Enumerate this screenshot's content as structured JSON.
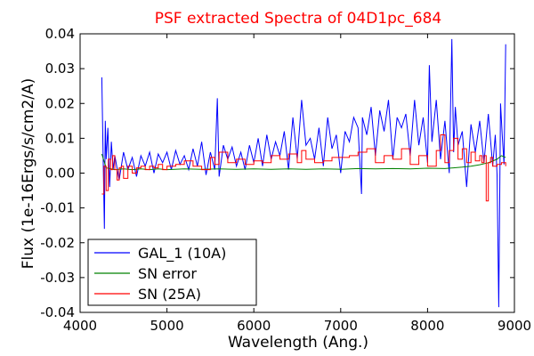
{
  "chart_data": {
    "type": "line",
    "title": "PSF extracted Spectra of 04D1pc_684",
    "title_color": "#ff0000",
    "xlabel": "Wavelength (Ang.)",
    "ylabel": "Flux (1e-16Ergs/s/cm2/A)",
    "xlim": [
      4000,
      9000
    ],
    "ylim": [
      -0.04,
      0.04
    ],
    "xticks": [
      4000,
      5000,
      6000,
      7000,
      8000,
      9000
    ],
    "yticks": [
      0.04,
      0.03,
      0.02,
      0.01,
      0.0,
      -0.01,
      -0.02,
      -0.03,
      -0.04
    ],
    "xtick_labels": [
      "4000",
      "5000",
      "6000",
      "7000",
      "8000",
      "9000"
    ],
    "ytick_labels": [
      "0.04",
      "0.03",
      "0.02",
      "0.01",
      "0.00",
      "-0.01",
      "-0.02",
      "-0.03",
      "-0.04"
    ],
    "grid": false,
    "legend_position": "lower-left",
    "series": [
      {
        "name": "GAL_1 (10A)",
        "color": "#0000ff",
        "step": false,
        "x": [
          4250,
          4260,
          4270,
          4280,
          4290,
          4300,
          4320,
          4340,
          4360,
          4380,
          4400,
          4450,
          4500,
          4550,
          4600,
          4650,
          4700,
          4750,
          4800,
          4850,
          4900,
          4950,
          5000,
          5050,
          5100,
          5150,
          5200,
          5250,
          5300,
          5350,
          5400,
          5450,
          5500,
          5550,
          5580,
          5600,
          5650,
          5700,
          5750,
          5800,
          5850,
          5900,
          5950,
          6000,
          6050,
          6100,
          6150,
          6200,
          6250,
          6300,
          6350,
          6400,
          6450,
          6500,
          6550,
          6600,
          6650,
          6700,
          6750,
          6800,
          6850,
          6900,
          6950,
          7000,
          7050,
          7100,
          7150,
          7200,
          7240,
          7250,
          7300,
          7350,
          7400,
          7450,
          7500,
          7550,
          7600,
          7650,
          7700,
          7750,
          7800,
          7850,
          7900,
          7950,
          8000,
          8020,
          8050,
          8100,
          8150,
          8200,
          8250,
          8280,
          8300,
          8320,
          8350,
          8400,
          8450,
          8500,
          8550,
          8600,
          8650,
          8700,
          8750,
          8780,
          8800,
          8820,
          8840,
          8860,
          8880,
          8900
        ],
        "y": [
          0.0275,
          0.012,
          -0.003,
          -0.016,
          0.015,
          0.004,
          0.013,
          -0.004,
          0.009,
          0.001,
          0.005,
          -0.002,
          0.006,
          0.001,
          0.0045,
          -0.001,
          0.005,
          0.002,
          0.006,
          0.0,
          0.0055,
          0.003,
          0.006,
          0.001,
          0.0065,
          0.0025,
          0.005,
          0.001,
          0.007,
          0.002,
          0.009,
          -0.0005,
          0.006,
          0.001,
          0.0215,
          -0.001,
          0.008,
          0.004,
          0.0075,
          0.002,
          0.006,
          0.001,
          0.008,
          0.003,
          0.01,
          0.002,
          0.011,
          0.004,
          0.009,
          0.005,
          0.012,
          0.001,
          0.016,
          0.004,
          0.021,
          0.008,
          0.01,
          0.004,
          0.013,
          0.002,
          0.016,
          0.007,
          0.011,
          0.0,
          0.012,
          0.009,
          0.016,
          0.013,
          -0.006,
          0.016,
          0.011,
          0.019,
          0.005,
          0.018,
          0.012,
          0.021,
          0.004,
          0.016,
          0.013,
          0.017,
          0.005,
          0.021,
          0.008,
          0.016,
          0.003,
          0.031,
          0.009,
          0.021,
          0.004,
          0.015,
          0.0,
          0.0385,
          0.006,
          0.019,
          0.008,
          0.012,
          -0.004,
          0.014,
          0.006,
          0.015,
          0.003,
          0.017,
          0.002,
          0.011,
          -0.0005,
          -0.0385,
          0.02,
          0.011,
          0.0025,
          0.037
        ]
      },
      {
        "name": "SN error",
        "color": "#008000",
        "step": false,
        "x": [
          4250,
          4300,
          4400,
          4500,
          4600,
          4700,
          4800,
          4900,
          5000,
          5200,
          5400,
          5600,
          5800,
          6000,
          6200,
          6400,
          6600,
          6800,
          7000,
          7200,
          7400,
          7600,
          7800,
          8000,
          8200,
          8400,
          8500,
          8600,
          8700,
          8800,
          8850,
          8900
        ],
        "y": [
          0.0055,
          0.0015,
          0.001,
          0.0012,
          0.001,
          0.0012,
          0.001,
          0.0012,
          0.001,
          0.0012,
          0.0011,
          0.0012,
          0.0011,
          0.0012,
          0.0011,
          0.0012,
          0.0011,
          0.0012,
          0.0011,
          0.0013,
          0.0012,
          0.0013,
          0.0012,
          0.0014,
          0.0013,
          0.0017,
          0.002,
          0.0024,
          0.003,
          0.004,
          0.005,
          0.0045
        ]
      },
      {
        "name": "SN (25A)",
        "color": "#ff0000",
        "step": true,
        "x": [
          4250,
          4275,
          4300,
          4325,
          4350,
          4375,
          4400,
          4425,
          4450,
          4475,
          4500,
          4550,
          4600,
          4650,
          4700,
          4750,
          4800,
          4850,
          4900,
          4950,
          5000,
          5100,
          5200,
          5300,
          5400,
          5500,
          5550,
          5600,
          5700,
          5800,
          5900,
          6000,
          6100,
          6200,
          6300,
          6400,
          6500,
          6550,
          6600,
          6700,
          6800,
          6900,
          7000,
          7100,
          7200,
          7300,
          7400,
          7500,
          7600,
          7700,
          7800,
          7900,
          8000,
          8100,
          8150,
          8200,
          8250,
          8300,
          8350,
          8400,
          8450,
          8500,
          8550,
          8600,
          8625,
          8650,
          8675,
          8700,
          8725,
          8750,
          8800,
          8850,
          8900
        ],
        "y": [
          -0.006,
          0.002,
          -0.005,
          0.004,
          0.001,
          0.005,
          0.001,
          -0.002,
          0.0015,
          0.002,
          -0.0015,
          0.002,
          0.0,
          0.0015,
          0.002,
          0.001,
          0.002,
          0.0015,
          0.0025,
          0.001,
          0.002,
          0.0025,
          0.0035,
          0.002,
          0.001,
          0.0045,
          0.0025,
          0.006,
          0.003,
          0.004,
          0.0025,
          0.0035,
          0.003,
          0.005,
          0.004,
          0.0055,
          0.003,
          0.0065,
          0.004,
          0.003,
          0.0035,
          0.0045,
          0.0045,
          0.005,
          0.006,
          0.007,
          0.003,
          0.005,
          0.004,
          0.007,
          0.0025,
          0.005,
          0.002,
          0.0065,
          0.011,
          0.003,
          0.0065,
          0.01,
          0.004,
          0.007,
          0.003,
          0.006,
          0.0035,
          0.005,
          0.003,
          0.005,
          -0.008,
          0.003,
          0.0045,
          0.002,
          0.0025,
          0.003,
          0.002
        ]
      }
    ]
  }
}
